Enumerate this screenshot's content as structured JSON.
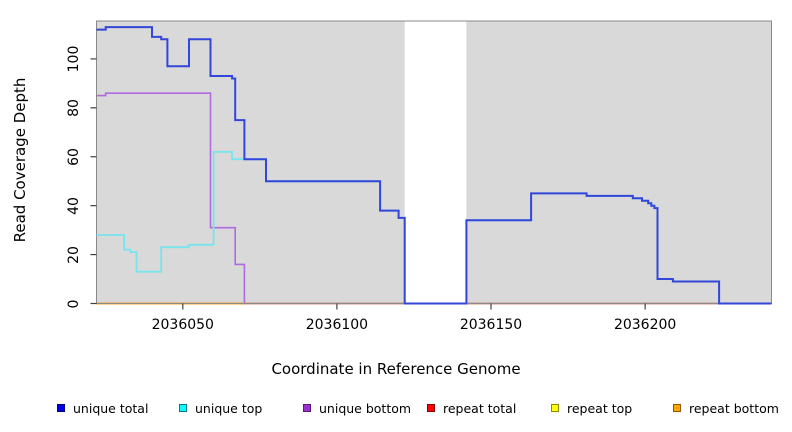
{
  "chart_data": {
    "type": "line",
    "subtype": "step",
    "title": "",
    "xlabel": "Coordinate in Reference Genome",
    "ylabel": "Read Coverage Depth",
    "x_range": [
      2036022,
      2036241
    ],
    "y_range": [
      0,
      115.5
    ],
    "x_ticks": [
      2036050,
      2036100,
      2036150,
      2036200
    ],
    "y_ticks": [
      0,
      20,
      40,
      60,
      80,
      100
    ],
    "grid": "off",
    "plot_bg_color": "#d9d9d9",
    "plot_border_color": "#8a8a8a",
    "tick_color": "#404040",
    "gap_region": {
      "x_start": 2036122,
      "x_end": 2036142,
      "color": "#ffffff"
    },
    "series": [
      {
        "name": "unique bottom",
        "color": "#b06ae0",
        "width": 1.6,
        "layer": "below",
        "end_x": 2036241,
        "steps": [
          [
            2036022,
            85
          ],
          [
            2036025,
            86
          ],
          [
            2036059,
            31
          ],
          [
            2036067,
            16
          ],
          [
            2036070,
            0
          ]
        ]
      },
      {
        "name": "repeat top",
        "color": "#f5e928",
        "width": 1.6,
        "layer": "below",
        "end_x": 2036241,
        "steps": [
          [
            2036022,
            0
          ]
        ]
      },
      {
        "name": "repeat total",
        "color": "#cd5d86",
        "width": 1.6,
        "layer": "below",
        "end_x": 2036241,
        "steps": [
          [
            2036022,
            0
          ]
        ]
      },
      {
        "name": "repeat bottom",
        "color": "#ffa022",
        "width": 2,
        "layer": "below",
        "end_x": 2036070,
        "steps": [
          [
            2036022,
            0
          ]
        ]
      },
      {
        "name": "unique top",
        "color": "#78e4ec",
        "width": 1.8,
        "layer": "above",
        "end_x": 2036241,
        "steps": [
          [
            2036022,
            28
          ],
          [
            2036031,
            22
          ],
          [
            2036033,
            21
          ],
          [
            2036035,
            13
          ],
          [
            2036043,
            23
          ],
          [
            2036052,
            24
          ],
          [
            2036060,
            62
          ],
          [
            2036066,
            59
          ],
          [
            2036077,
            50
          ],
          [
            2036114,
            38
          ],
          [
            2036120,
            35
          ],
          [
            2036122,
            0
          ],
          [
            2036142,
            34
          ],
          [
            2036163,
            45
          ],
          [
            2036181,
            44
          ],
          [
            2036196,
            43
          ],
          [
            2036199,
            42
          ],
          [
            2036201,
            41
          ],
          [
            2036202,
            40
          ],
          [
            2036203,
            39
          ],
          [
            2036204,
            10
          ],
          [
            2036209,
            9
          ],
          [
            2036224,
            0
          ]
        ]
      },
      {
        "name": "unique total",
        "color": "#3346d9",
        "width": 2,
        "layer": "above",
        "end_x": 2036241,
        "steps": [
          [
            2036022,
            112
          ],
          [
            2036025,
            113
          ],
          [
            2036040,
            109
          ],
          [
            2036043,
            108
          ],
          [
            2036045,
            97
          ],
          [
            2036052,
            108
          ],
          [
            2036059,
            93
          ],
          [
            2036066,
            92
          ],
          [
            2036067,
            75
          ],
          [
            2036070,
            59
          ],
          [
            2036077,
            50
          ],
          [
            2036114,
            38
          ],
          [
            2036120,
            35
          ],
          [
            2036122,
            0
          ],
          [
            2036142,
            34
          ],
          [
            2036163,
            45
          ],
          [
            2036181,
            44
          ],
          [
            2036196,
            43
          ],
          [
            2036199,
            42
          ],
          [
            2036201,
            41
          ],
          [
            2036202,
            40
          ],
          [
            2036203,
            39
          ],
          [
            2036204,
            10
          ],
          [
            2036209,
            9
          ],
          [
            2036224,
            0
          ]
        ]
      }
    ],
    "legend": {
      "position": "bottom",
      "items": [
        {
          "label": "unique total",
          "fill": "#0000ee",
          "border": "#000080"
        },
        {
          "label": "unique top",
          "fill": "#00ffff",
          "border": "#007b8c"
        },
        {
          "label": "unique bottom",
          "fill": "#9b30d0",
          "border": "#551a7a"
        },
        {
          "label": "repeat total",
          "fill": "#ff0000",
          "border": "#8b0000"
        },
        {
          "label": "repeat top",
          "fill": "#ffff00",
          "border": "#8b8b00"
        },
        {
          "label": "repeat bottom",
          "fill": "#ffa500",
          "border": "#8b5a00"
        }
      ]
    }
  }
}
